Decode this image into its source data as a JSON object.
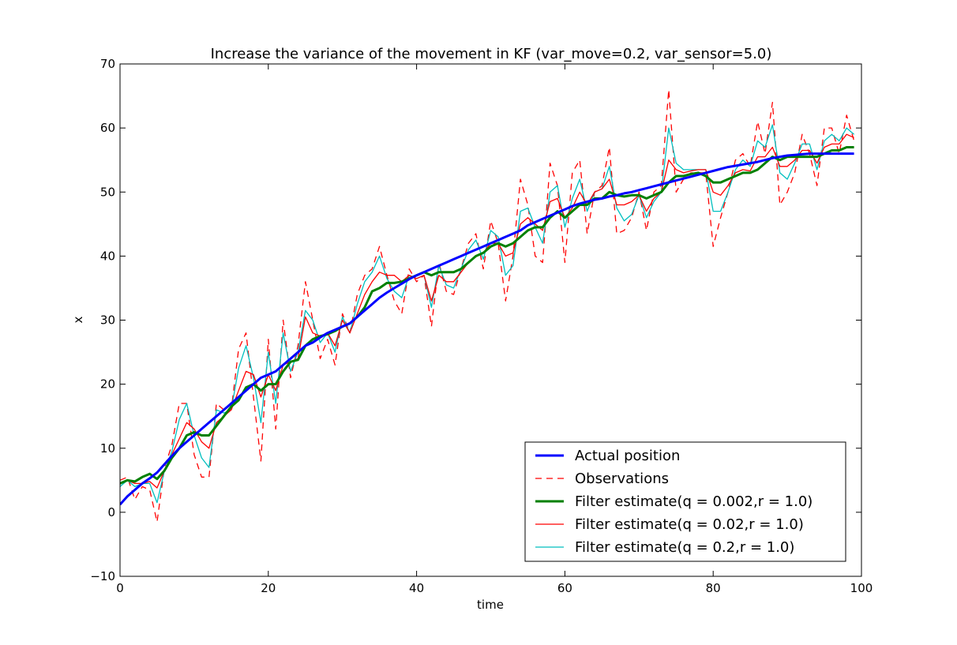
{
  "chart_data": {
    "type": "line",
    "title": "Increase the variance of the movement in KF (var_move=0.2, var_sensor=5.0)",
    "xlabel": "time",
    "ylabel": "x",
    "xlim": [
      0,
      100
    ],
    "ylim": [
      -10,
      70
    ],
    "xticks": [
      0,
      20,
      40,
      60,
      80,
      100
    ],
    "yticks": [
      -10,
      0,
      10,
      20,
      30,
      40,
      50,
      60,
      70
    ],
    "xtick_labels": [
      "0",
      "20",
      "40",
      "60",
      "80",
      "100"
    ],
    "ytick_labels": [
      "−10",
      "0",
      "10",
      "20",
      "30",
      "40",
      "50",
      "60",
      "70"
    ],
    "grid": false,
    "legend_position": "lower-right",
    "x": [
      0,
      1,
      2,
      3,
      4,
      5,
      6,
      7,
      8,
      9,
      10,
      11,
      12,
      13,
      14,
      15,
      16,
      17,
      18,
      19,
      20,
      21,
      22,
      23,
      24,
      25,
      26,
      27,
      28,
      29,
      30,
      31,
      32,
      33,
      34,
      35,
      36,
      37,
      38,
      39,
      40,
      41,
      42,
      43,
      44,
      45,
      46,
      47,
      48,
      49,
      50,
      51,
      52,
      53,
      54,
      55,
      56,
      57,
      58,
      59,
      60,
      61,
      62,
      63,
      64,
      65,
      66,
      67,
      68,
      69,
      70,
      71,
      72,
      73,
      74,
      75,
      76,
      77,
      78,
      79,
      80,
      81,
      82,
      83,
      84,
      85,
      86,
      87,
      88,
      89,
      90,
      91,
      92,
      93,
      94,
      95,
      96,
      97,
      98,
      99
    ],
    "series": [
      {
        "name": "Actual position",
        "color": "#0000ff",
        "style": "solid-thick",
        "values": [
          1.2,
          2.5,
          3.5,
          4.5,
          5.3,
          6.2,
          7.5,
          8.8,
          10,
          11,
          12,
          13,
          14,
          15,
          16,
          17,
          18,
          19,
          20,
          21,
          21.5,
          22,
          23,
          24,
          25,
          26,
          26.5,
          27.3,
          28,
          28.5,
          29,
          29.5,
          30.5,
          31.5,
          32.5,
          33.5,
          34.3,
          35,
          35.7,
          36.4,
          37,
          37.5,
          38,
          38.5,
          39,
          39.5,
          40,
          40.5,
          41,
          41.5,
          42,
          42.5,
          43,
          43.5,
          44,
          44.8,
          45.3,
          45.8,
          46.3,
          46.8,
          47.3,
          47.8,
          48.2,
          48.5,
          48.8,
          49,
          49.3,
          49.5,
          49.8,
          50,
          50.3,
          50.6,
          50.9,
          51.2,
          51.5,
          51.8,
          52.1,
          52.4,
          52.7,
          53,
          53.3,
          53.6,
          53.9,
          54.1,
          54.3,
          54.5,
          54.7,
          55,
          55.3,
          55.5,
          55.7,
          55.8,
          55.9,
          56,
          56,
          56,
          56,
          56,
          56,
          56
        ]
      },
      {
        "name": "Observations",
        "color": "#ff0000",
        "style": "dashed",
        "values": [
          5,
          5.5,
          2,
          4,
          3.5,
          -1.5,
          7,
          10.5,
          17,
          17,
          9,
          5.5,
          5.5,
          17,
          16,
          16,
          25.5,
          28,
          18,
          8,
          27,
          13,
          30,
          21,
          26,
          36,
          30,
          24,
          27,
          23,
          31,
          28,
          34,
          37,
          38,
          41.5,
          37,
          33,
          31,
          38,
          36,
          37,
          29,
          39,
          34.5,
          34,
          38,
          42,
          43.5,
          38,
          45.5,
          42,
          33,
          40,
          52,
          48,
          40,
          39,
          54.5,
          51,
          39,
          53,
          55,
          43.5,
          50,
          51,
          57,
          43.5,
          44,
          46,
          50,
          44,
          50,
          51,
          66,
          50,
          52,
          53,
          53,
          53,
          41.5,
          46,
          50,
          55,
          56,
          54,
          61,
          56,
          64,
          48,
          50,
          53,
          59,
          56,
          51,
          60,
          60,
          56,
          62,
          58
        ]
      },
      {
        "name": "Filter estimate(q = 0.002,r = 1.0)",
        "color": "#008000",
        "style": "solid-thick",
        "values": [
          4.5,
          5,
          4.8,
          5.5,
          6,
          5.2,
          6.5,
          8.5,
          10,
          12,
          12.5,
          12,
          12,
          13.5,
          15,
          16.5,
          17.5,
          19.5,
          20,
          19,
          20,
          20,
          22,
          23.5,
          23.8,
          26,
          27,
          27.5,
          27.8,
          28.3,
          29,
          29.5,
          30.5,
          32,
          34.5,
          35,
          35.8,
          35.8,
          36,
          36.5,
          37,
          37.5,
          37,
          37.5,
          37.5,
          37.5,
          38,
          39,
          40,
          40.5,
          41.5,
          42,
          41.5,
          42,
          43,
          44,
          44.5,
          44.5,
          46,
          47,
          46,
          47,
          48,
          48,
          49,
          49,
          50,
          49.5,
          49.3,
          49.5,
          49.5,
          49,
          49.5,
          50,
          51.5,
          52.5,
          52.5,
          52.8,
          53,
          52.5,
          51.5,
          51.5,
          52,
          52.5,
          53,
          53,
          53.5,
          54.5,
          55.5,
          55,
          55.5,
          55.5,
          55.5,
          55.5,
          55.5,
          56,
          56.5,
          56.5,
          57,
          57
        ]
      },
      {
        "name": "Filter estimate(q = 0.02,r = 1.0)",
        "color": "#ff0000",
        "style": "solid",
        "values": [
          4.5,
          5,
          4.5,
          4.5,
          4.8,
          3.8,
          6.5,
          9,
          11.5,
          14,
          13,
          11,
          10,
          14,
          15,
          16,
          19,
          22,
          21.5,
          18,
          21.5,
          19,
          23,
          23.5,
          24,
          30.5,
          28,
          27.5,
          28,
          26,
          30,
          28,
          31,
          34,
          36,
          37.5,
          37,
          37,
          36,
          37,
          36.5,
          37,
          33,
          37,
          36,
          36,
          37.5,
          39,
          40,
          40.5,
          42,
          42,
          40,
          40.5,
          45,
          46,
          45,
          44,
          48.5,
          49,
          46,
          47.5,
          50,
          48,
          50,
          50.5,
          52,
          48,
          48,
          48.5,
          49.5,
          47,
          49,
          50,
          55,
          53.5,
          53,
          53.3,
          53.5,
          53.5,
          50,
          49.5,
          51,
          53,
          53.5,
          53.3,
          55.5,
          55.5,
          57,
          54,
          54,
          55,
          56.5,
          56.5,
          54.5,
          57,
          57.5,
          57.5,
          59,
          58.5
        ]
      },
      {
        "name": "Filter estimate(q = 0.2,r = 1.0)",
        "color": "#00bfbf",
        "style": "solid",
        "values": [
          4,
          5,
          4,
          4.5,
          4.5,
          1.5,
          6.5,
          9.5,
          14.5,
          17,
          12,
          8.5,
          7,
          16,
          15.5,
          16,
          22.5,
          26,
          21,
          14,
          25,
          17,
          28,
          22,
          25,
          31.5,
          30,
          26.5,
          28,
          25,
          30.5,
          28,
          32.5,
          36,
          37.5,
          40,
          36.5,
          34.5,
          33.5,
          37,
          36.5,
          37,
          32,
          38.5,
          35.5,
          35,
          38,
          41,
          42.5,
          39.5,
          44,
          43,
          37,
          38.5,
          47,
          47.5,
          44.5,
          42,
          50,
          51,
          44.5,
          49,
          52,
          47,
          50,
          50.5,
          54,
          47.5,
          45.5,
          46.5,
          49.5,
          46,
          48.5,
          50,
          60,
          54.5,
          53.5,
          53.5,
          53.5,
          53.5,
          47,
          47,
          50,
          53.5,
          55,
          54,
          58,
          57,
          60.5,
          53,
          52,
          54.5,
          57.5,
          57.5,
          53.5,
          58,
          59,
          58,
          60,
          59
        ]
      }
    ]
  }
}
